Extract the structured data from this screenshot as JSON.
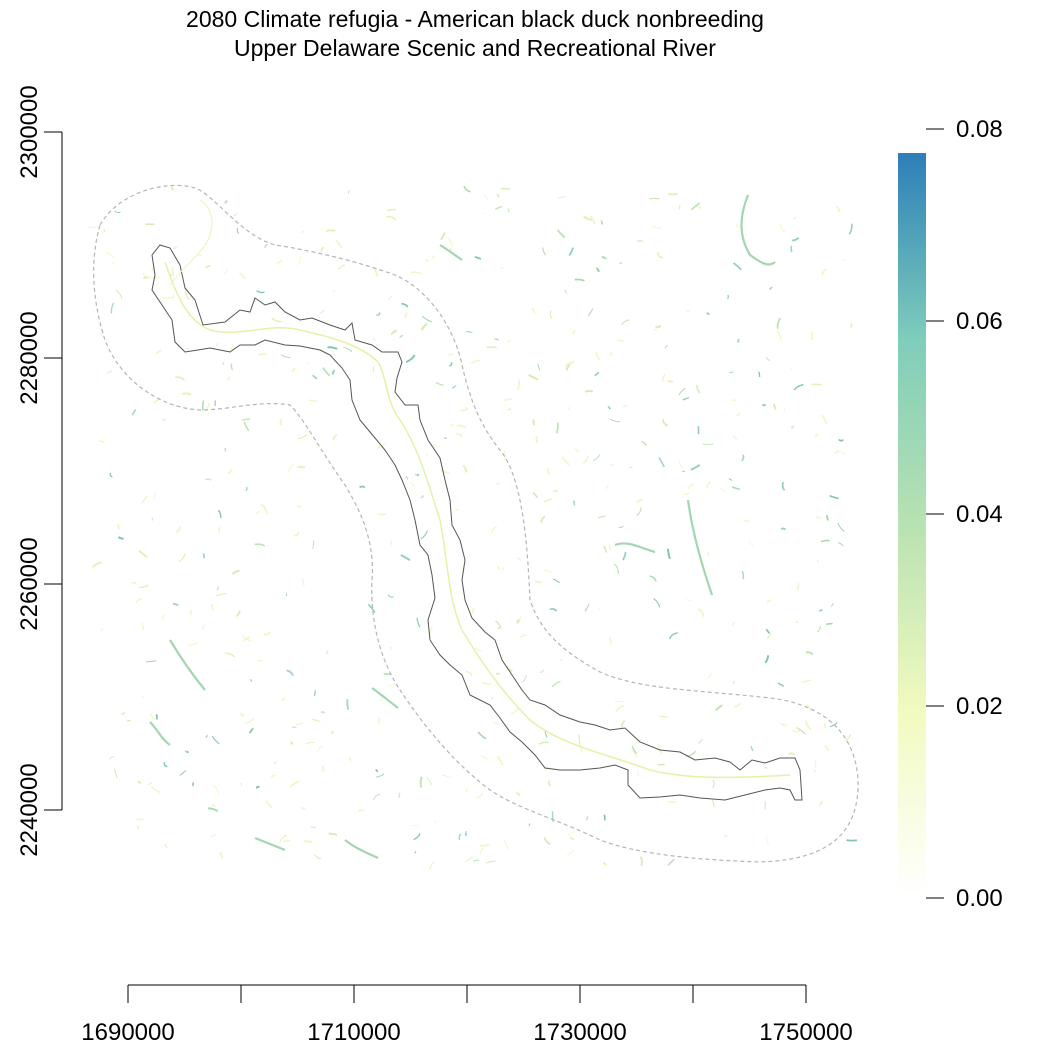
{
  "title": {
    "line1": "2080 Climate refugia - American black duck nonbreeding",
    "line2": "Upper Delaware Scenic and Recreational River"
  },
  "map": {
    "x_axis": {
      "min": 1690000,
      "max": 1750000,
      "ticks": [
        1690000,
        1700000,
        1710000,
        1720000,
        1730000,
        1740000,
        1750000
      ],
      "labels": [
        "1690000",
        "1710000",
        "1730000",
        "1750000"
      ]
    },
    "y_axis": {
      "ticks": [
        2240000,
        2260000,
        2280000,
        2300000
      ],
      "labels": [
        "2240000",
        "2260000",
        "2280000",
        "2300000"
      ]
    }
  },
  "legend": {
    "labels": [
      "0.00",
      "0.02",
      "0.04",
      "0.06",
      "0.08"
    ],
    "colors": [
      "#ffffff",
      "#edf8b1",
      "#a9dcb0",
      "#7fcdbb",
      "#2c7fb8"
    ]
  }
}
